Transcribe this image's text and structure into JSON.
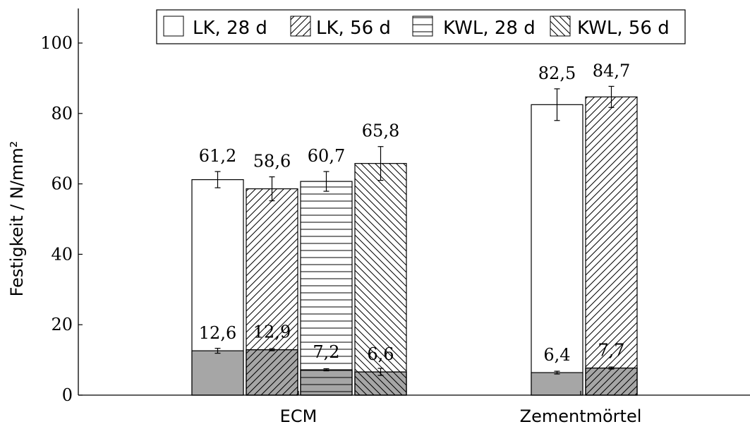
{
  "chart_data": {
    "type": "bar",
    "ylabel": "Festigkeit / N/mm²",
    "ylim": [
      0,
      110
    ],
    "yticks": [
      0,
      20,
      40,
      60,
      80,
      100
    ],
    "grid": false,
    "legend_position": "top-center",
    "categories": [
      "ECM",
      "Zementmörtel"
    ],
    "series": [
      {
        "name": "LK, 28 d",
        "pattern": "none",
        "compressive_strength": [
          61.2,
          82.5
        ],
        "compressive_error": [
          2.3,
          4.5
        ],
        "flexural_strength": [
          12.6,
          6.4
        ],
        "flexural_error": [
          0.7,
          0.4
        ],
        "compressive_labels": [
          "61,2",
          "82,5"
        ],
        "flexural_labels": [
          "12,6",
          "6,4"
        ]
      },
      {
        "name": "LK, 56 d",
        "pattern": "diagonal-up",
        "compressive_strength": [
          58.6,
          84.7
        ],
        "compressive_error": [
          3.4,
          3.0
        ],
        "flexural_strength": [
          12.9,
          7.7
        ],
        "flexural_error": [
          0.3,
          0.3
        ],
        "compressive_labels": [
          "58,6",
          "84,7"
        ],
        "flexural_labels": [
          "12,9",
          "7,7"
        ]
      },
      {
        "name": "KWL, 28 d",
        "pattern": "horizontal",
        "compressive_strength": [
          60.7,
          null
        ],
        "compressive_error": [
          2.8,
          null
        ],
        "flexural_strength": [
          7.2,
          null
        ],
        "flexural_error": [
          0.3,
          null
        ],
        "compressive_labels": [
          "60,7",
          ""
        ],
        "flexural_labels": [
          "7,2",
          ""
        ]
      },
      {
        "name": "KWL, 56 d",
        "pattern": "diagonal-down",
        "compressive_strength": [
          65.8,
          null
        ],
        "compressive_error": [
          4.8,
          null
        ],
        "flexural_strength": [
          6.6,
          null
        ],
        "flexural_error": [
          1.0,
          null
        ],
        "compressive_labels": [
          "65,8",
          ""
        ],
        "flexural_labels": [
          "6,6",
          ""
        ]
      }
    ],
    "colors": {
      "flexural_fill": "#a6a6a6",
      "compressive_fill": "#ffffff",
      "stroke": "#000000"
    }
  }
}
